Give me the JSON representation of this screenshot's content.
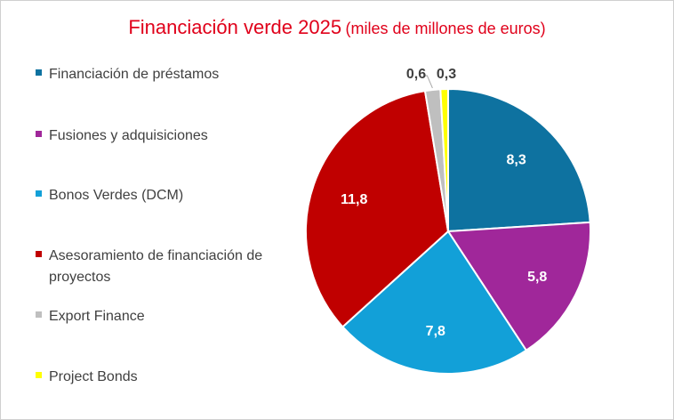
{
  "chart_data": {
    "type": "pie",
    "title": "Financiación verde 2025",
    "subtitle": "(miles de millones de euros)",
    "unit": "miles de millones de euros",
    "categories": [
      "Financiación de préstamos",
      "Fusiones y adquisiciones",
      "Bonos Verdes (DCM)",
      "Asesoramiento de financiación de proyectos",
      "Export Finance",
      "Project Bonds"
    ],
    "values": [
      8.3,
      5.8,
      7.8,
      11.8,
      0.6,
      0.3
    ],
    "data_labels": [
      "8,3",
      "5,8",
      "7,8",
      "11,8",
      "0,6",
      "0,3"
    ],
    "colors": [
      "#0e72a0",
      "#a0279a",
      "#12a0d8",
      "#c00000",
      "#bfbfbf",
      "#ffff00"
    ],
    "label_colors": [
      "#ffffff",
      "#ffffff",
      "#ffffff",
      "#ffffff",
      "#404040",
      "#404040"
    ],
    "legend_position": "left"
  }
}
